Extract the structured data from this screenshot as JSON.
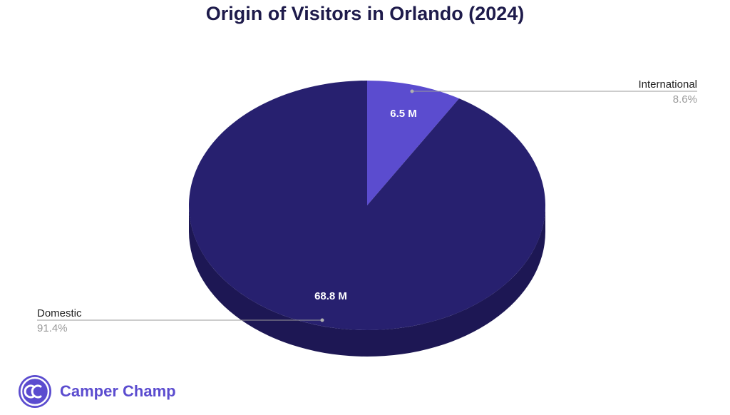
{
  "chart_data": {
    "type": "pie",
    "title": "Origin of Visitors in Orlando (2024)",
    "slices": [
      {
        "name": "International",
        "value": 6.5,
        "label": "6.5 M",
        "percent": "8.6%",
        "color": "#5b4ccf"
      },
      {
        "name": "Domestic",
        "value": 68.8,
        "label": "68.8 M",
        "percent": "91.4%",
        "color": "#27206f"
      }
    ],
    "side_color": "#1d1754"
  },
  "brand": {
    "name": "Camper Champ",
    "logo_icon": "cc-logo-icon",
    "color": "#5b4ccf"
  }
}
